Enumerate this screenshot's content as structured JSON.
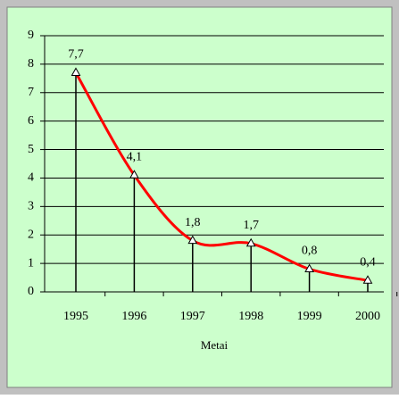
{
  "chart_data": {
    "type": "line",
    "x_label": "Metai",
    "categories": [
      "1995",
      "1996",
      "1997",
      "1998",
      "1999",
      "2000"
    ],
    "series": [
      {
        "color": "#ff0000",
        "values": [
          7.7,
          4.1,
          1.8,
          1.7,
          0.8,
          0.4
        ],
        "value_labels": [
          "7,7",
          "4,1",
          "1,8",
          "1,7",
          "0,8",
          "0,4"
        ]
      }
    ],
    "ylim": [
      0,
      9
    ],
    "yticks": [
      0,
      1,
      2,
      3,
      4,
      5,
      6,
      7,
      8,
      9
    ],
    "grid": true,
    "background": "#ccffcc"
  }
}
